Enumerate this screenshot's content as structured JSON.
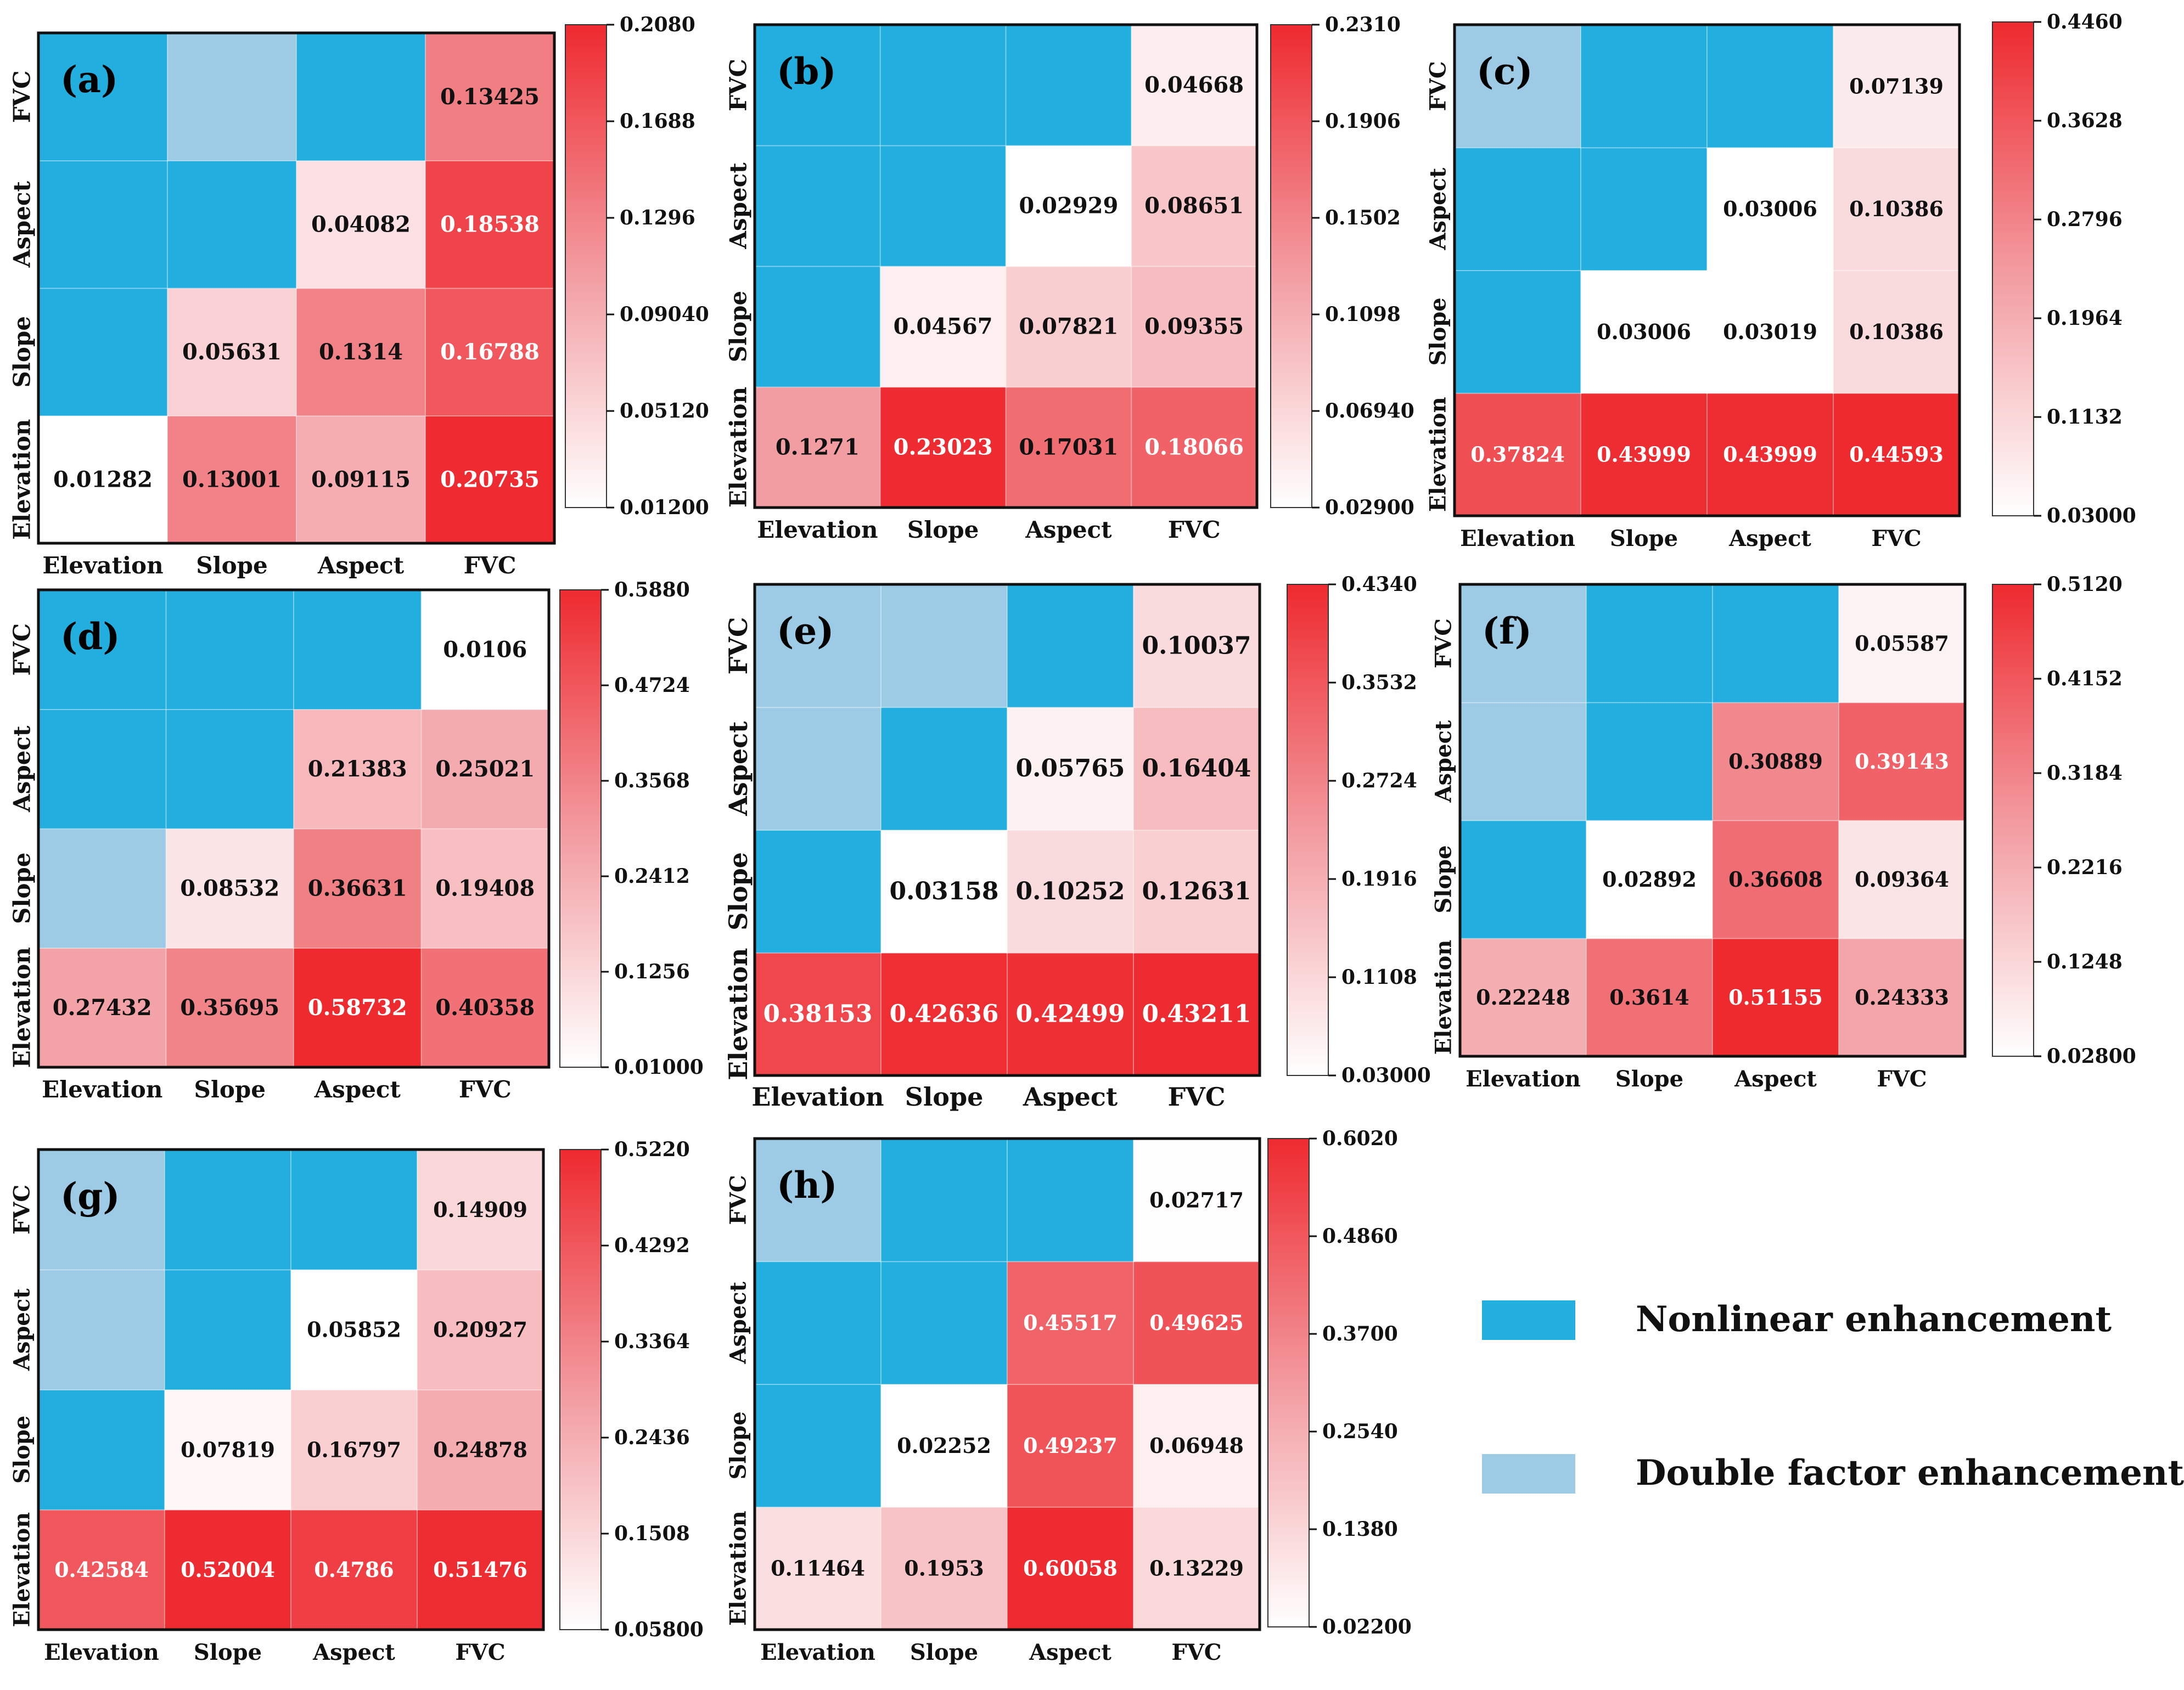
{
  "figure": {
    "description_labels": [
      "Nonlinear enhancement",
      "Double factor enhancement"
    ]
  },
  "colors": {
    "nonlinear": "#22aedf",
    "double": "#9dcbe6",
    "scale_low": "#ffffff",
    "scale_mid": "#f29a9f",
    "scale_high": "#ee2a2f",
    "border": "#111111"
  },
  "legend": {
    "items": [
      {
        "label": "Nonlinear enhancement",
        "color": "#22aedf"
      },
      {
        "label": "Double factor enhancement",
        "color": "#9dcbe6"
      }
    ]
  },
  "chart_data": [
    {
      "type": "heatmap",
      "panel": "(a)",
      "x_categories": [
        "Elevation",
        "Slope",
        "Aspect",
        "FVC"
      ],
      "y_categories": [
        "Elevation",
        "Slope",
        "Aspect",
        "FVC"
      ],
      "colorbar_ticks": [
        "0.2080",
        "0.1688",
        "0.1296",
        "0.09040",
        "0.05120",
        "0.01200"
      ],
      "vmin": 0.012,
      "vmax": 0.208,
      "cells": [
        [
          {
            "value": "0.01282"
          },
          {
            "value": "0.13001"
          },
          {
            "value": "0.09115"
          },
          {
            "value": "0.20735"
          }
        ],
        [
          {
            "type": "nonlinear"
          },
          {
            "value": "0.05631"
          },
          {
            "value": "0.1314"
          },
          {
            "value": "0.16788"
          }
        ],
        [
          {
            "type": "nonlinear"
          },
          {
            "type": "nonlinear"
          },
          {
            "value": "0.04082"
          },
          {
            "value": "0.18538"
          }
        ],
        [
          {
            "type": "nonlinear"
          },
          {
            "type": "double"
          },
          {
            "type": "nonlinear"
          },
          {
            "value": "0.13425"
          }
        ]
      ]
    },
    {
      "type": "heatmap",
      "panel": "(b)",
      "x_categories": [
        "Elevation",
        "Slope",
        "Aspect",
        "FVC"
      ],
      "y_categories": [
        "Elevation",
        "Slope",
        "Aspect",
        "FVC"
      ],
      "colorbar_ticks": [
        "0.2310",
        "0.1906",
        "0.1502",
        "0.1098",
        "0.06940",
        "0.02900"
      ],
      "vmin": 0.029,
      "vmax": 0.231,
      "cells": [
        [
          {
            "value": "0.1271"
          },
          {
            "value": "0.23023"
          },
          {
            "value": "0.17031"
          },
          {
            "value": "0.18066"
          }
        ],
        [
          {
            "type": "nonlinear"
          },
          {
            "value": "0.04567"
          },
          {
            "value": "0.07821"
          },
          {
            "value": "0.09355"
          }
        ],
        [
          {
            "type": "nonlinear"
          },
          {
            "type": "nonlinear"
          },
          {
            "value": "0.02929"
          },
          {
            "value": "0.08651"
          }
        ],
        [
          {
            "type": "nonlinear"
          },
          {
            "type": "nonlinear"
          },
          {
            "type": "nonlinear"
          },
          {
            "value": "0.04668"
          }
        ]
      ]
    },
    {
      "type": "heatmap",
      "panel": "(c)",
      "x_categories": [
        "Elevation",
        "Slope",
        "Aspect",
        "FVC"
      ],
      "y_categories": [
        "Elevation",
        "Slope",
        "Aspect",
        "FVC"
      ],
      "colorbar_ticks": [
        "0.4460",
        "0.3628",
        "0.2796",
        "0.1964",
        "0.1132",
        "0.03000"
      ],
      "vmin": 0.03,
      "vmax": 0.446,
      "cells": [
        [
          {
            "value": "0.37824"
          },
          {
            "value": "0.43999"
          },
          {
            "value": "0.43999"
          },
          {
            "value": "0.44593"
          }
        ],
        [
          {
            "type": "nonlinear"
          },
          {
            "value": "0.03006"
          },
          {
            "value": "0.03019"
          },
          {
            "value": "0.10386"
          }
        ],
        [
          {
            "type": "nonlinear"
          },
          {
            "type": "nonlinear"
          },
          {
            "value": "0.03006"
          },
          {
            "value": "0.10386"
          }
        ],
        [
          {
            "type": "double"
          },
          {
            "type": "nonlinear"
          },
          {
            "type": "nonlinear"
          },
          {
            "value": "0.07139"
          }
        ]
      ]
    },
    {
      "type": "heatmap",
      "panel": "(d)",
      "x_categories": [
        "Elevation",
        "Slope",
        "Aspect",
        "FVC"
      ],
      "y_categories": [
        "Elevation",
        "Slope",
        "Aspect",
        "FVC"
      ],
      "colorbar_ticks": [
        "0.5880",
        "0.4724",
        "0.3568",
        "0.2412",
        "0.1256",
        "0.01000"
      ],
      "vmin": 0.01,
      "vmax": 0.588,
      "cells": [
        [
          {
            "value": "0.27432"
          },
          {
            "value": "0.35695"
          },
          {
            "value": "0.58732"
          },
          {
            "value": "0.40358"
          }
        ],
        [
          {
            "type": "double"
          },
          {
            "value": "0.08532"
          },
          {
            "value": "0.36631"
          },
          {
            "value": "0.19408"
          }
        ],
        [
          {
            "type": "nonlinear"
          },
          {
            "type": "nonlinear"
          },
          {
            "value": "0.21383"
          },
          {
            "value": "0.25021"
          }
        ],
        [
          {
            "type": "nonlinear"
          },
          {
            "type": "nonlinear"
          },
          {
            "type": "nonlinear"
          },
          {
            "value": "0.0106"
          }
        ]
      ]
    },
    {
      "type": "heatmap",
      "panel": "(e)",
      "x_categories": [
        "Elevation",
        "Slope",
        "Aspect",
        "FVC"
      ],
      "y_categories": [
        "Elevation",
        "Slope",
        "Aspect",
        "FVC"
      ],
      "colorbar_ticks": [
        "0.4340",
        "0.3532",
        "0.2724",
        "0.1916",
        "0.1108",
        "0.03000"
      ],
      "vmin": 0.03,
      "vmax": 0.434,
      "cells": [
        [
          {
            "value": "0.38153"
          },
          {
            "value": "0.42636"
          },
          {
            "value": "0.42499"
          },
          {
            "value": "0.43211"
          }
        ],
        [
          {
            "type": "nonlinear"
          },
          {
            "value": "0.03158"
          },
          {
            "value": "0.10252"
          },
          {
            "value": "0.12631"
          }
        ],
        [
          {
            "type": "double"
          },
          {
            "type": "nonlinear"
          },
          {
            "value": "0.05765"
          },
          {
            "value": "0.16404"
          }
        ],
        [
          {
            "type": "double"
          },
          {
            "type": "double"
          },
          {
            "type": "nonlinear"
          },
          {
            "value": "0.10037"
          }
        ]
      ]
    },
    {
      "type": "heatmap",
      "panel": "(f)",
      "x_categories": [
        "Elevation",
        "Slope",
        "Aspect",
        "FVC"
      ],
      "y_categories": [
        "Elevation",
        "Slope",
        "Aspect",
        "FVC"
      ],
      "colorbar_ticks": [
        "0.5120",
        "0.4152",
        "0.3184",
        "0.2216",
        "0.1248",
        "0.02800"
      ],
      "vmin": 0.028,
      "vmax": 0.512,
      "cells": [
        [
          {
            "value": "0.22248"
          },
          {
            "value": "0.3614"
          },
          {
            "value": "0.51155"
          },
          {
            "value": "0.24333"
          }
        ],
        [
          {
            "type": "nonlinear"
          },
          {
            "value": "0.02892"
          },
          {
            "value": "0.36608"
          },
          {
            "value": "0.09364"
          }
        ],
        [
          {
            "type": "double"
          },
          {
            "type": "nonlinear"
          },
          {
            "value": "0.30889"
          },
          {
            "value": "0.39143"
          }
        ],
        [
          {
            "type": "double"
          },
          {
            "type": "nonlinear"
          },
          {
            "type": "nonlinear"
          },
          {
            "value": "0.05587"
          }
        ]
      ]
    },
    {
      "type": "heatmap",
      "panel": "(g)",
      "x_categories": [
        "Elevation",
        "Slope",
        "Aspect",
        "FVC"
      ],
      "y_categories": [
        "Elevation",
        "Slope",
        "Aspect",
        "FVC"
      ],
      "colorbar_ticks": [
        "0.5220",
        "0.4292",
        "0.3364",
        "0.2436",
        "0.1508",
        "0.05800"
      ],
      "vmin": 0.058,
      "vmax": 0.522,
      "cells": [
        [
          {
            "value": "0.42584"
          },
          {
            "value": "0.52004"
          },
          {
            "value": "0.4786"
          },
          {
            "value": "0.51476"
          }
        ],
        [
          {
            "type": "nonlinear"
          },
          {
            "value": "0.07819"
          },
          {
            "value": "0.16797"
          },
          {
            "value": "0.24878"
          }
        ],
        [
          {
            "type": "double"
          },
          {
            "type": "nonlinear"
          },
          {
            "value": "0.05852"
          },
          {
            "value": "0.20927"
          }
        ],
        [
          {
            "type": "double"
          },
          {
            "type": "nonlinear"
          },
          {
            "type": "nonlinear"
          },
          {
            "value": "0.14909"
          }
        ]
      ]
    },
    {
      "type": "heatmap",
      "panel": "(h)",
      "x_categories": [
        "Elevation",
        "Slope",
        "Aspect",
        "FVC"
      ],
      "y_categories": [
        "Elevation",
        "Slope",
        "Aspect",
        "FVC"
      ],
      "colorbar_ticks": [
        "0.6020",
        "0.4860",
        "0.3700",
        "0.2540",
        "0.1380",
        "0.02200"
      ],
      "vmin": 0.022,
      "vmax": 0.602,
      "cells": [
        [
          {
            "value": "0.11464"
          },
          {
            "value": "0.1953"
          },
          {
            "value": "0.60058"
          },
          {
            "value": "0.13229"
          }
        ],
        [
          {
            "type": "nonlinear"
          },
          {
            "value": "0.02252"
          },
          {
            "value": "0.49237"
          },
          {
            "value": "0.06948"
          }
        ],
        [
          {
            "type": "nonlinear"
          },
          {
            "type": "nonlinear"
          },
          {
            "value": "0.45517"
          },
          {
            "value": "0.49625"
          }
        ],
        [
          {
            "type": "double"
          },
          {
            "type": "nonlinear"
          },
          {
            "type": "nonlinear"
          },
          {
            "value": "0.02717"
          }
        ]
      ]
    }
  ]
}
